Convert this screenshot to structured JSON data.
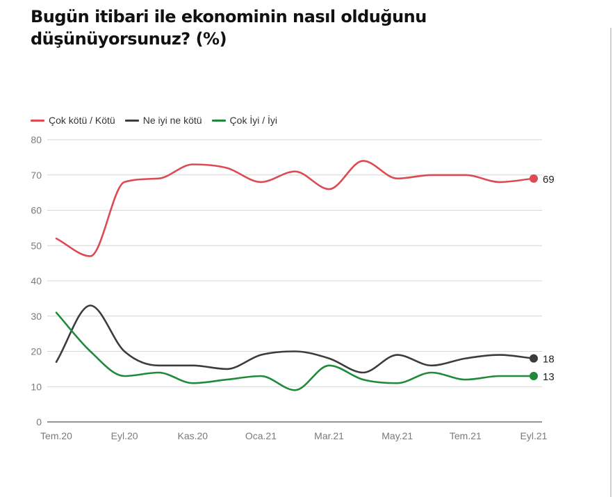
{
  "title": "Bugün itibari ile ekonominin nasıl olduğunu düşünüyorsunuz? (%)",
  "chart_data": {
    "type": "line",
    "title": "Bugün itibari ile ekonominin nasıl olduğunu düşünüyorsunuz? (%)",
    "xlabel": "",
    "ylabel": "",
    "ylim": [
      0,
      80
    ],
    "yticks": [
      0,
      10,
      20,
      30,
      40,
      50,
      60,
      70,
      80
    ],
    "x_tick_labels": [
      "Tem.20",
      "Eyl.20",
      "Kas.20",
      "Oca.21",
      "Mar.21",
      "May.21",
      "Tem.21",
      "Eyl.21"
    ],
    "x": [
      "Tem.20",
      "Ağu.20",
      "Eyl.20",
      "Eki.20",
      "Kas.20",
      "Ara.20",
      "Oca.21",
      "Şub.21",
      "Mar.21",
      "Nis.21",
      "May.21",
      "Haz.21",
      "Tem.21",
      "Ağu.21",
      "Eyl.21"
    ],
    "grid": true,
    "legend_position": "top-left",
    "series": [
      {
        "name": "Çok kötü / Kötü",
        "color": "#dc4a52",
        "values": [
          52,
          47,
          68,
          69,
          73,
          72,
          68,
          71,
          66,
          74,
          69,
          70,
          70,
          68,
          69
        ],
        "end_label": "69"
      },
      {
        "name": "Ne iyi ne kötü",
        "color": "#3c3c3c",
        "values": [
          17,
          33,
          20,
          16,
          16,
          15,
          19,
          20,
          18,
          14,
          19,
          16,
          18,
          19,
          18
        ],
        "end_label": "18"
      },
      {
        "name": "Çok İyi / İyi",
        "color": "#1f8a3a",
        "values": [
          31,
          20,
          13,
          14,
          11,
          12,
          13,
          9,
          16,
          12,
          11,
          14,
          12,
          13,
          13
        ],
        "end_label": "13"
      }
    ]
  }
}
